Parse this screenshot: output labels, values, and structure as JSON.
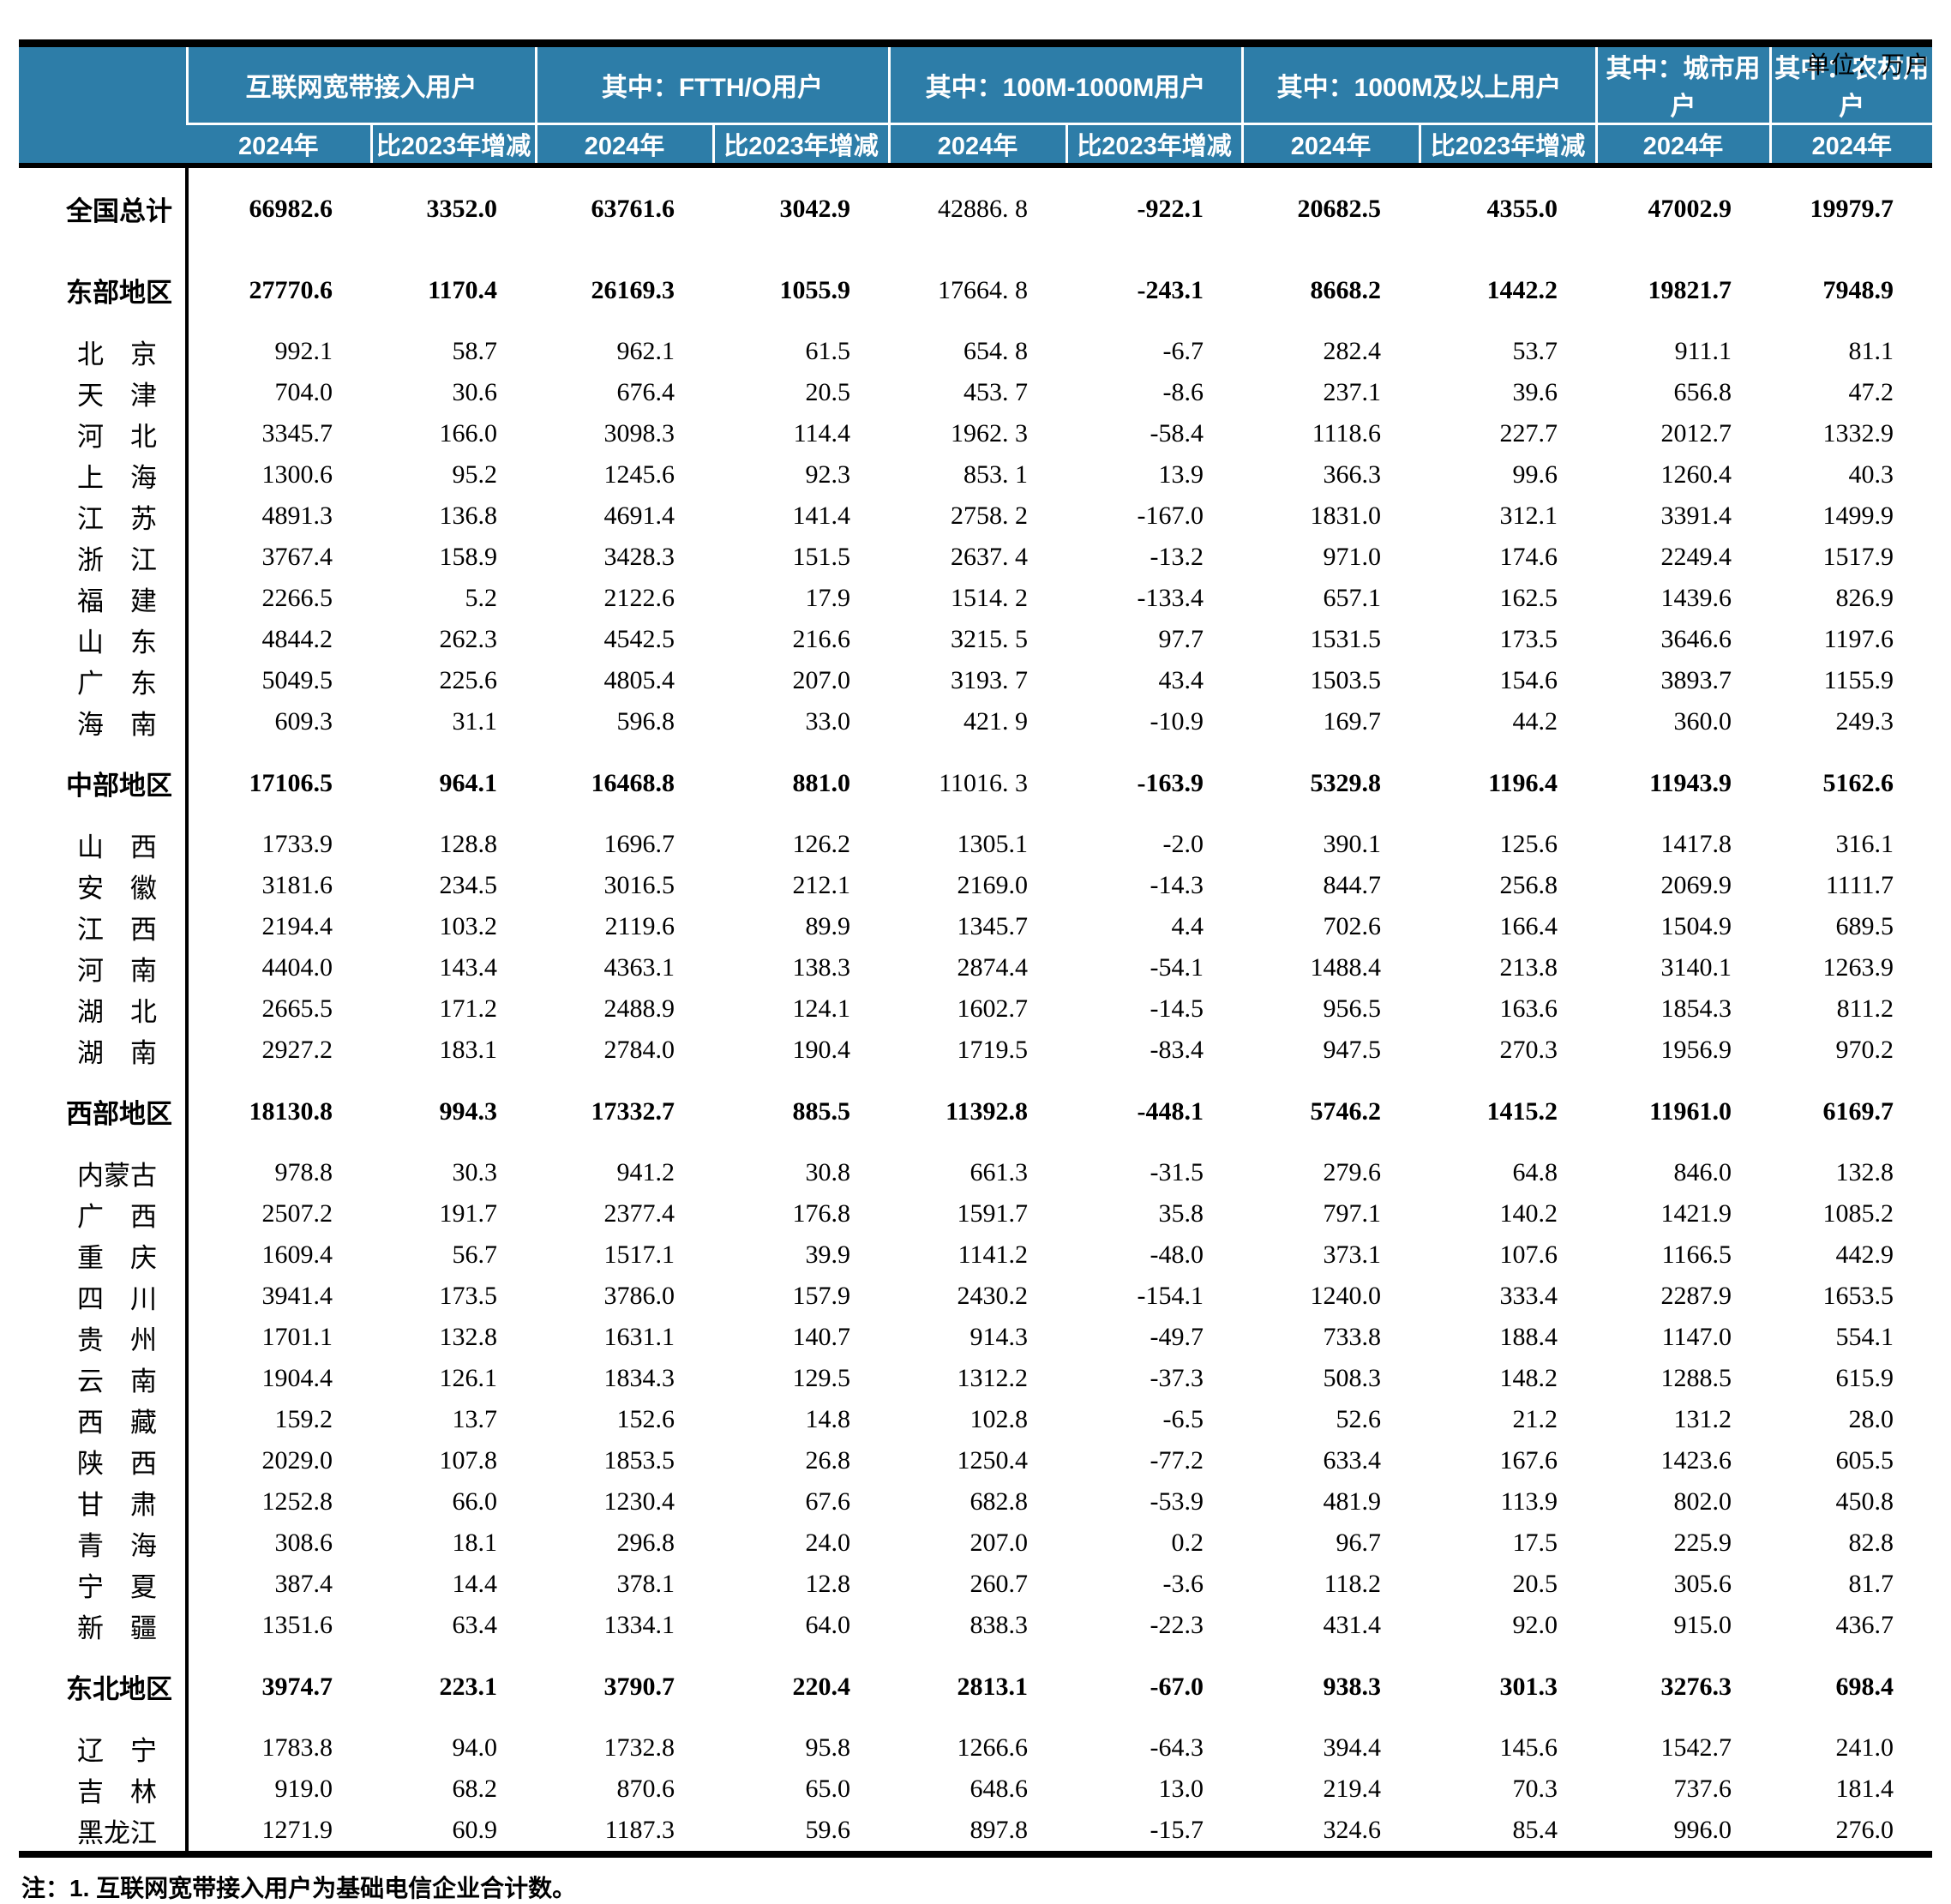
{
  "unit_label": "单位：万户",
  "note": "注：1. 互联网宽带接入用户为基础电信企业合计数。",
  "colors": {
    "header_bg": "#2D7DA8",
    "header_text": "#FFFFFF",
    "body_text": "#000000"
  },
  "table": {
    "header": {
      "groups": [
        "互联网宽带接入用户",
        "其中：FTTH/O用户",
        "其中：100M-1000M用户",
        "其中：1000M及以上用户",
        "其中：城市用户",
        "其中：农村用户"
      ],
      "subs": [
        "2024年",
        "比2023年增减",
        "2024年",
        "比2023年增减",
        "2024年",
        "比2023年增减",
        "2024年",
        "比2023年增减",
        "2024年",
        "2024年"
      ]
    },
    "rows": [
      {
        "label": "全国总计",
        "type": "total",
        "values": [
          "66982.6",
          "3352.0",
          "63761.6",
          "3042.9",
          "42886. 8",
          "-922.1",
          "20682.5",
          "4355.0",
          "47002.9",
          "19979.7"
        ]
      },
      {
        "label": "东部地区",
        "type": "region",
        "values": [
          "27770.6",
          "1170.4",
          "26169.3",
          "1055.9",
          "17664. 8",
          "-243.1",
          "8668.2",
          "1442.2",
          "19821.7",
          "7948.9"
        ]
      },
      {
        "label": "北　京",
        "type": "province",
        "values": [
          "992.1",
          "58.7",
          "962.1",
          "61.5",
          "654. 8",
          "-6.7",
          "282.4",
          "53.7",
          "911.1",
          "81.1"
        ]
      },
      {
        "label": "天　津",
        "type": "province",
        "values": [
          "704.0",
          "30.6",
          "676.4",
          "20.5",
          "453. 7",
          "-8.6",
          "237.1",
          "39.6",
          "656.8",
          "47.2"
        ]
      },
      {
        "label": "河　北",
        "type": "province",
        "values": [
          "3345.7",
          "166.0",
          "3098.3",
          "114.4",
          "1962. 3",
          "-58.4",
          "1118.6",
          "227.7",
          "2012.7",
          "1332.9"
        ]
      },
      {
        "label": "上　海",
        "type": "province",
        "values": [
          "1300.6",
          "95.2",
          "1245.6",
          "92.3",
          "853. 1",
          "13.9",
          "366.3",
          "99.6",
          "1260.4",
          "40.3"
        ]
      },
      {
        "label": "江　苏",
        "type": "province",
        "values": [
          "4891.3",
          "136.8",
          "4691.4",
          "141.4",
          "2758. 2",
          "-167.0",
          "1831.0",
          "312.1",
          "3391.4",
          "1499.9"
        ]
      },
      {
        "label": "浙　江",
        "type": "province",
        "values": [
          "3767.4",
          "158.9",
          "3428.3",
          "151.5",
          "2637. 4",
          "-13.2",
          "971.0",
          "174.6",
          "2249.4",
          "1517.9"
        ]
      },
      {
        "label": "福　建",
        "type": "province",
        "values": [
          "2266.5",
          "5.2",
          "2122.6",
          "17.9",
          "1514. 2",
          "-133.4",
          "657.1",
          "162.5",
          "1439.6",
          "826.9"
        ]
      },
      {
        "label": "山　东",
        "type": "province",
        "values": [
          "4844.2",
          "262.3",
          "4542.5",
          "216.6",
          "3215. 5",
          "97.7",
          "1531.5",
          "173.5",
          "3646.6",
          "1197.6"
        ]
      },
      {
        "label": "广　东",
        "type": "province",
        "values": [
          "5049.5",
          "225.6",
          "4805.4",
          "207.0",
          "3193. 7",
          "43.4",
          "1503.5",
          "154.6",
          "3893.7",
          "1155.9"
        ]
      },
      {
        "label": "海　南",
        "type": "province",
        "values": [
          "609.3",
          "31.1",
          "596.8",
          "33.0",
          "421. 9",
          "-10.9",
          "169.7",
          "44.2",
          "360.0",
          "249.3"
        ]
      },
      {
        "label": "中部地区",
        "type": "region",
        "values": [
          "17106.5",
          "964.1",
          "16468.8",
          "881.0",
          "11016. 3",
          "-163.9",
          "5329.8",
          "1196.4",
          "11943.9",
          "5162.6"
        ]
      },
      {
        "label": "山　西",
        "type": "province",
        "values": [
          "1733.9",
          "128.8",
          "1696.7",
          "126.2",
          "1305.1",
          "-2.0",
          "390.1",
          "125.6",
          "1417.8",
          "316.1"
        ]
      },
      {
        "label": "安　徽",
        "type": "province",
        "values": [
          "3181.6",
          "234.5",
          "3016.5",
          "212.1",
          "2169.0",
          "-14.3",
          "844.7",
          "256.8",
          "2069.9",
          "1111.7"
        ]
      },
      {
        "label": "江　西",
        "type": "province",
        "values": [
          "2194.4",
          "103.2",
          "2119.6",
          "89.9",
          "1345.7",
          "4.4",
          "702.6",
          "166.4",
          "1504.9",
          "689.5"
        ]
      },
      {
        "label": "河　南",
        "type": "province",
        "values": [
          "4404.0",
          "143.4",
          "4363.1",
          "138.3",
          "2874.4",
          "-54.1",
          "1488.4",
          "213.8",
          "3140.1",
          "1263.9"
        ]
      },
      {
        "label": "湖　北",
        "type": "province",
        "values": [
          "2665.5",
          "171.2",
          "2488.9",
          "124.1",
          "1602.7",
          "-14.5",
          "956.5",
          "163.6",
          "1854.3",
          "811.2"
        ]
      },
      {
        "label": "湖　南",
        "type": "province",
        "values": [
          "2927.2",
          "183.1",
          "2784.0",
          "190.4",
          "1719.5",
          "-83.4",
          "947.5",
          "270.3",
          "1956.9",
          "970.2"
        ]
      },
      {
        "label": "西部地区",
        "type": "region",
        "values": [
          "18130.8",
          "994.3",
          "17332.7",
          "885.5",
          "11392.8",
          "-448.1",
          "5746.2",
          "1415.2",
          "11961.0",
          "6169.7"
        ]
      },
      {
        "label": "内蒙古",
        "type": "province",
        "values": [
          "978.8",
          "30.3",
          "941.2",
          "30.8",
          "661.3",
          "-31.5",
          "279.6",
          "64.8",
          "846.0",
          "132.8"
        ]
      },
      {
        "label": "广　西",
        "type": "province",
        "values": [
          "2507.2",
          "191.7",
          "2377.4",
          "176.8",
          "1591.7",
          "35.8",
          "797.1",
          "140.2",
          "1421.9",
          "1085.2"
        ]
      },
      {
        "label": "重　庆",
        "type": "province",
        "values": [
          "1609.4",
          "56.7",
          "1517.1",
          "39.9",
          "1141.2",
          "-48.0",
          "373.1",
          "107.6",
          "1166.5",
          "442.9"
        ]
      },
      {
        "label": "四　川",
        "type": "province",
        "values": [
          "3941.4",
          "173.5",
          "3786.0",
          "157.9",
          "2430.2",
          "-154.1",
          "1240.0",
          "333.4",
          "2287.9",
          "1653.5"
        ]
      },
      {
        "label": "贵　州",
        "type": "province",
        "values": [
          "1701.1",
          "132.8",
          "1631.1",
          "140.7",
          "914.3",
          "-49.7",
          "733.8",
          "188.4",
          "1147.0",
          "554.1"
        ]
      },
      {
        "label": "云　南",
        "type": "province",
        "values": [
          "1904.4",
          "126.1",
          "1834.3",
          "129.5",
          "1312.2",
          "-37.3",
          "508.3",
          "148.2",
          "1288.5",
          "615.9"
        ]
      },
      {
        "label": "西　藏",
        "type": "province",
        "values": [
          "159.2",
          "13.7",
          "152.6",
          "14.8",
          "102.8",
          "-6.5",
          "52.6",
          "21.2",
          "131.2",
          "28.0"
        ]
      },
      {
        "label": "陕　西",
        "type": "province",
        "values": [
          "2029.0",
          "107.8",
          "1853.5",
          "26.8",
          "1250.4",
          "-77.2",
          "633.4",
          "167.6",
          "1423.6",
          "605.5"
        ]
      },
      {
        "label": "甘　肃",
        "type": "province",
        "values": [
          "1252.8",
          "66.0",
          "1230.4",
          "67.6",
          "682.8",
          "-53.9",
          "481.9",
          "113.9",
          "802.0",
          "450.8"
        ]
      },
      {
        "label": "青　海",
        "type": "province",
        "values": [
          "308.6",
          "18.1",
          "296.8",
          "24.0",
          "207.0",
          "0.2",
          "96.7",
          "17.5",
          "225.9",
          "82.8"
        ]
      },
      {
        "label": "宁　夏",
        "type": "province",
        "values": [
          "387.4",
          "14.4",
          "378.1",
          "12.8",
          "260.7",
          "-3.6",
          "118.2",
          "20.5",
          "305.6",
          "81.7"
        ]
      },
      {
        "label": "新　疆",
        "type": "province",
        "values": [
          "1351.6",
          "63.4",
          "1334.1",
          "64.0",
          "838.3",
          "-22.3",
          "431.4",
          "92.0",
          "915.0",
          "436.7"
        ]
      },
      {
        "label": "东北地区",
        "type": "region",
        "values": [
          "3974.7",
          "223.1",
          "3790.7",
          "220.4",
          "2813.1",
          "-67.0",
          "938.3",
          "301.3",
          "3276.3",
          "698.4"
        ]
      },
      {
        "label": "辽　宁",
        "type": "province",
        "values": [
          "1783.8",
          "94.0",
          "1732.8",
          "95.8",
          "1266.6",
          "-64.3",
          "394.4",
          "145.6",
          "1542.7",
          "241.0"
        ]
      },
      {
        "label": "吉　林",
        "type": "province",
        "values": [
          "919.0",
          "68.2",
          "870.6",
          "65.0",
          "648.6",
          "13.0",
          "219.4",
          "70.3",
          "737.6",
          "181.4"
        ]
      },
      {
        "label": "黑龙江",
        "type": "province",
        "values": [
          "1271.9",
          "60.9",
          "1187.3",
          "59.6",
          "897.8",
          "-15.7",
          "324.6",
          "85.4",
          "996.0",
          "276.0"
        ]
      }
    ]
  }
}
